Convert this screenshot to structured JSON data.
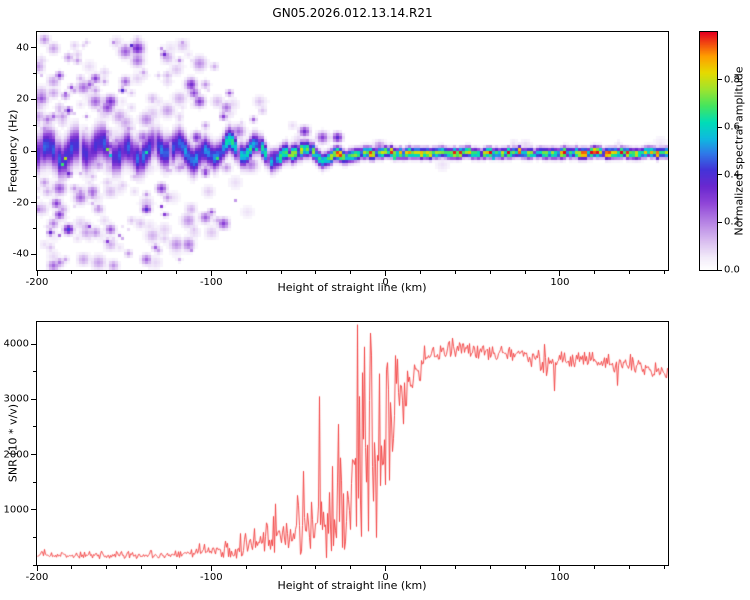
{
  "chart_data": [
    {
      "type": "heatmap",
      "title": "GN05.2026.012.13.14.R21",
      "xlabel": "Height of straight line (km)",
      "ylabel": "Frequency (Hz)",
      "xlim": [
        -200,
        162
      ],
      "ylim": [
        -46,
        46
      ],
      "x_major_ticks": [
        -200,
        -100,
        0,
        100
      ],
      "x_tick_labels": [
        "-200",
        "-100",
        "0",
        "100"
      ],
      "x_minor_step": 20,
      "y_major_ticks": [
        -40,
        -20,
        0,
        20,
        40
      ],
      "y_tick_labels": [
        "-40",
        "-20",
        "0",
        "20",
        "40"
      ],
      "y_minor_step": 10,
      "grid": false,
      "colorbar": {
        "label": "Normalized spectral amplitude",
        "vmin": 0.0,
        "vmax": 1.0,
        "ticks": [
          0.0,
          0.2,
          0.4,
          0.6,
          0.8
        ],
        "tick_labels": [
          "0.0",
          "0.2",
          "0.4",
          "0.6",
          "0.8"
        ],
        "stops": [
          [
            0.0,
            "#ffffff"
          ],
          [
            0.05,
            "#f3ecfa"
          ],
          [
            0.12,
            "#d9bdf0"
          ],
          [
            0.2,
            "#b683e4"
          ],
          [
            0.28,
            "#8f45d8"
          ],
          [
            0.35,
            "#6a28cf"
          ],
          [
            0.42,
            "#4433d8"
          ],
          [
            0.49,
            "#2f7ae8"
          ],
          [
            0.55,
            "#10b8e0"
          ],
          [
            0.62,
            "#00ddb8"
          ],
          [
            0.69,
            "#44e55e"
          ],
          [
            0.76,
            "#9fe42e"
          ],
          [
            0.83,
            "#e6da00"
          ],
          [
            0.9,
            "#ff9d00"
          ],
          [
            1.0,
            "#e6001f"
          ]
        ]
      },
      "signal_track": {
        "x": [
          -200,
          -180,
          -160,
          -140,
          -120,
          -110,
          -100,
          -95,
          -90,
          -85,
          -80,
          -75,
          -70,
          -65,
          -60,
          -55,
          -50,
          -45,
          -40,
          -35,
          -30,
          -25,
          -20,
          -15,
          -10,
          -5,
          0,
          20,
          40,
          60,
          80,
          100,
          120,
          140,
          162
        ],
        "center": [
          0.5,
          0.3,
          0,
          0.2,
          0,
          -0.5,
          -1,
          0.8,
          1.8,
          -1.5,
          -1,
          1.5,
          1,
          -1.8,
          -2.5,
          -1,
          0.5,
          -1,
          -2,
          -2.8,
          -2,
          -1.2,
          -0.8,
          -1.5,
          -1,
          -0.8,
          -0.8,
          -0.8,
          -0.8,
          -0.8,
          -0.8,
          -0.8,
          -0.8,
          -0.8,
          -0.8
        ],
        "width": [
          9,
          9,
          8.5,
          8,
          7.5,
          7,
          6.5,
          6.2,
          6,
          5.8,
          5.5,
          5.2,
          5,
          4.8,
          4.6,
          4.4,
          4.2,
          4,
          3.8,
          3.6,
          3.4,
          3.2,
          3.1,
          3,
          2.9,
          2.8,
          2.7,
          2.6,
          2.5,
          2.5,
          2.5,
          2.7,
          2.5,
          2.5,
          2.5
        ],
        "amp": [
          0.5,
          0.5,
          0.5,
          0.52,
          0.55,
          0.6,
          0.65,
          0.68,
          0.7,
          0.72,
          0.75,
          0.78,
          0.8,
          0.82,
          0.84,
          0.86,
          0.88,
          0.9,
          0.9,
          0.9,
          0.9,
          0.92,
          0.92,
          0.94,
          0.94,
          0.95,
          0.95,
          0.95,
          0.95,
          0.95,
          0.95,
          0.95,
          0.95,
          0.95,
          0.95
        ]
      },
      "noise_field": {
        "x": [
          -200,
          -180,
          -160,
          -140,
          -130,
          -120,
          -110,
          -100,
          -90,
          -80,
          -70,
          -60,
          -50,
          -40,
          -30,
          -20,
          -10,
          0,
          162
        ],
        "density": [
          0.55,
          0.5,
          0.45,
          0.42,
          0.4,
          0.35,
          0.28,
          0.22,
          0.16,
          0.12,
          0.08,
          0.05,
          0.03,
          0.02,
          0.015,
          0.01,
          0.008,
          0.005,
          0.004
        ],
        "spread": [
          46,
          46,
          46,
          46,
          46,
          44,
          40,
          34,
          28,
          24,
          20,
          16,
          12,
          10,
          8,
          7,
          6,
          5,
          4
        ]
      }
    },
    {
      "type": "line",
      "xlabel": "Height of straight line (km)",
      "ylabel": "SNR (10 * v/v)",
      "xlim": [
        -200,
        162
      ],
      "ylim": [
        0,
        4400
      ],
      "x_major_ticks": [
        -200,
        -100,
        0,
        100
      ],
      "x_tick_labels": [
        "-200",
        "-100",
        "0",
        "100"
      ],
      "x_minor_step": 20,
      "y_major_ticks": [
        1000,
        2000,
        3000,
        4000
      ],
      "y_tick_labels": [
        "1000",
        "2000",
        "3000",
        "4000"
      ],
      "y_minor_step": 500,
      "line_color": "#f23b3b",
      "series": {
        "x": [
          -200,
          -160,
          -130,
          -120,
          -110,
          -100,
          -95,
          -90,
          -85,
          -80,
          -75,
          -70,
          -65,
          -60,
          -55,
          -50,
          -45,
          -40,
          -35,
          -30,
          -25,
          -20,
          -15,
          -10,
          -5,
          0,
          5,
          10,
          15,
          20,
          25,
          30,
          40,
          50,
          60,
          70,
          80,
          85,
          90,
          95,
          100,
          110,
          120,
          130,
          140,
          150,
          162
        ],
        "base": [
          170,
          170,
          175,
          180,
          200,
          230,
          250,
          270,
          300,
          330,
          360,
          400,
          440,
          480,
          520,
          560,
          620,
          680,
          750,
          820,
          900,
          1000,
          1200,
          1500,
          1900,
          2300,
          2700,
          3000,
          3300,
          3600,
          3750,
          3850,
          3880,
          3870,
          3840,
          3820,
          3830,
          3750,
          3600,
          3650,
          3700,
          3690,
          3700,
          3620,
          3640,
          3560,
          3480
        ],
        "spread": [
          90,
          90,
          95,
          100,
          120,
          150,
          180,
          220,
          280,
          350,
          420,
          500,
          580,
          650,
          720,
          800,
          900,
          1000,
          1100,
          1200,
          1300,
          1500,
          1900,
          2100,
          1900,
          1600,
          1200,
          900,
          600,
          350,
          250,
          200,
          180,
          170,
          180,
          170,
          160,
          250,
          300,
          250,
          180,
          170,
          160,
          200,
          170,
          180,
          190
        ]
      },
      "spikes": [
        {
          "x": -47,
          "y": 1700
        },
        {
          "x": -38,
          "y": 3050
        },
        {
          "x": -27,
          "y": 2550
        },
        {
          "x": -16,
          "y": 4350
        },
        {
          "x": -12,
          "y": 3950
        },
        {
          "x": -8,
          "y": 3800
        },
        {
          "x": 97,
          "y": 3150
        },
        {
          "x": 133,
          "y": 3250
        }
      ]
    }
  ]
}
